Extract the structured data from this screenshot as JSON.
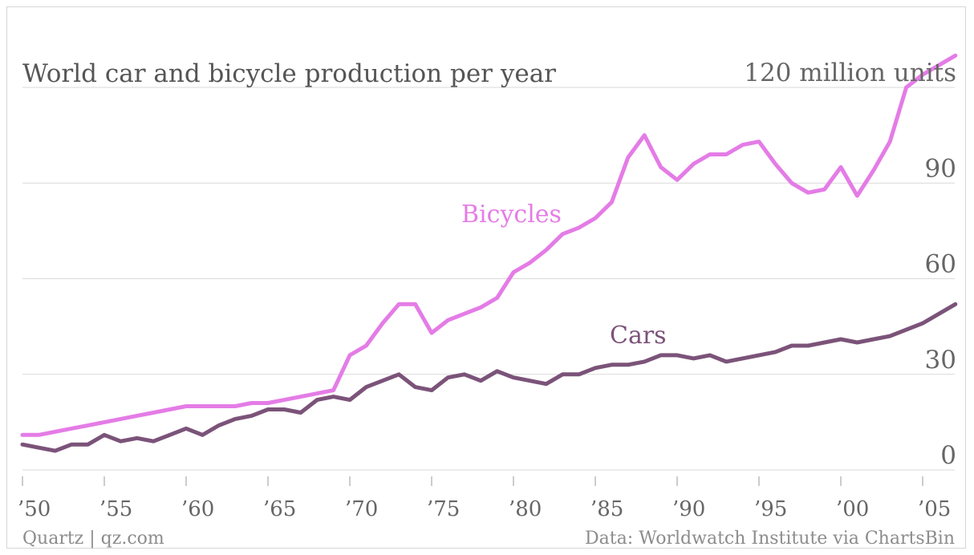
{
  "chart_data": {
    "type": "line",
    "title": "World car and bicycle production per year",
    "unit_label": "120 million units",
    "xlabel": "",
    "ylabel": "",
    "ylim": [
      0,
      120
    ],
    "xlim": [
      1950,
      2007
    ],
    "y_ticks": [
      {
        "value": 120,
        "label": "120 million units"
      },
      {
        "value": 90,
        "label": "90"
      },
      {
        "value": 60,
        "label": "60"
      },
      {
        "value": 30,
        "label": "30"
      },
      {
        "value": 0,
        "label": "0"
      }
    ],
    "x_ticks": [
      {
        "value": 1950,
        "label": "’50"
      },
      {
        "value": 1955,
        "label": "’55"
      },
      {
        "value": 1960,
        "label": "’60"
      },
      {
        "value": 1965,
        "label": "’65"
      },
      {
        "value": 1970,
        "label": "’70"
      },
      {
        "value": 1975,
        "label": "’75"
      },
      {
        "value": 1980,
        "label": "’80"
      },
      {
        "value": 1985,
        "label": "’85"
      },
      {
        "value": 1990,
        "label": "’90"
      },
      {
        "value": 1995,
        "label": "’95"
      },
      {
        "value": 2000,
        "label": "’00"
      },
      {
        "value": 2005,
        "label": "’05"
      }
    ],
    "grid": true,
    "series": [
      {
        "name": "Bicycles",
        "color": "#e47ce6",
        "x": [
          1950,
          1951,
          1952,
          1953,
          1954,
          1955,
          1956,
          1957,
          1958,
          1959,
          1960,
          1961,
          1962,
          1963,
          1964,
          1965,
          1966,
          1967,
          1968,
          1969,
          1970,
          1971,
          1972,
          1973,
          1974,
          1975,
          1976,
          1977,
          1978,
          1979,
          1980,
          1981,
          1982,
          1983,
          1984,
          1985,
          1986,
          1987,
          1988,
          1989,
          1990,
          1991,
          1992,
          1993,
          1994,
          1995,
          1996,
          1997,
          1998,
          1999,
          2000,
          2001,
          2002,
          2003,
          2004,
          2005,
          2006,
          2007
        ],
        "values": [
          11,
          11,
          12,
          13,
          14,
          15,
          16,
          17,
          18,
          19,
          20,
          20,
          20,
          20,
          21,
          21,
          22,
          23,
          24,
          25,
          36,
          39,
          46,
          52,
          52,
          43,
          47,
          49,
          51,
          54,
          62,
          65,
          69,
          74,
          76,
          79,
          84,
          98,
          105,
          95,
          91,
          96,
          99,
          99,
          102,
          103,
          96,
          90,
          87,
          88,
          95,
          86,
          94,
          103,
          120,
          124,
          127,
          130
        ]
      },
      {
        "name": "Cars",
        "color": "#7b5379",
        "x": [
          1950,
          1951,
          1952,
          1953,
          1954,
          1955,
          1956,
          1957,
          1958,
          1959,
          1960,
          1961,
          1962,
          1963,
          1964,
          1965,
          1966,
          1967,
          1968,
          1969,
          1970,
          1971,
          1972,
          1973,
          1974,
          1975,
          1976,
          1977,
          1978,
          1979,
          1980,
          1981,
          1982,
          1983,
          1984,
          1985,
          1986,
          1987,
          1988,
          1989,
          1990,
          1991,
          1992,
          1993,
          1994,
          1995,
          1996,
          1997,
          1998,
          1999,
          2000,
          2001,
          2002,
          2003,
          2004,
          2005,
          2006,
          2007
        ],
        "values": [
          8,
          7,
          6,
          8,
          8,
          11,
          9,
          10,
          9,
          11,
          13,
          11,
          14,
          16,
          17,
          19,
          19,
          18,
          22,
          23,
          22,
          26,
          28,
          30,
          26,
          25,
          29,
          30,
          28,
          31,
          29,
          28,
          27,
          30,
          30,
          32,
          33,
          33,
          34,
          36,
          36,
          35,
          36,
          34,
          35,
          36,
          37,
          39,
          39,
          40,
          41,
          40,
          41,
          42,
          44,
          46,
          49,
          52
        ]
      }
    ]
  },
  "footer": {
    "source_left": "Quartz | qz.com",
    "source_right": "Data: Worldwatch Institute via ChartsBin"
  }
}
